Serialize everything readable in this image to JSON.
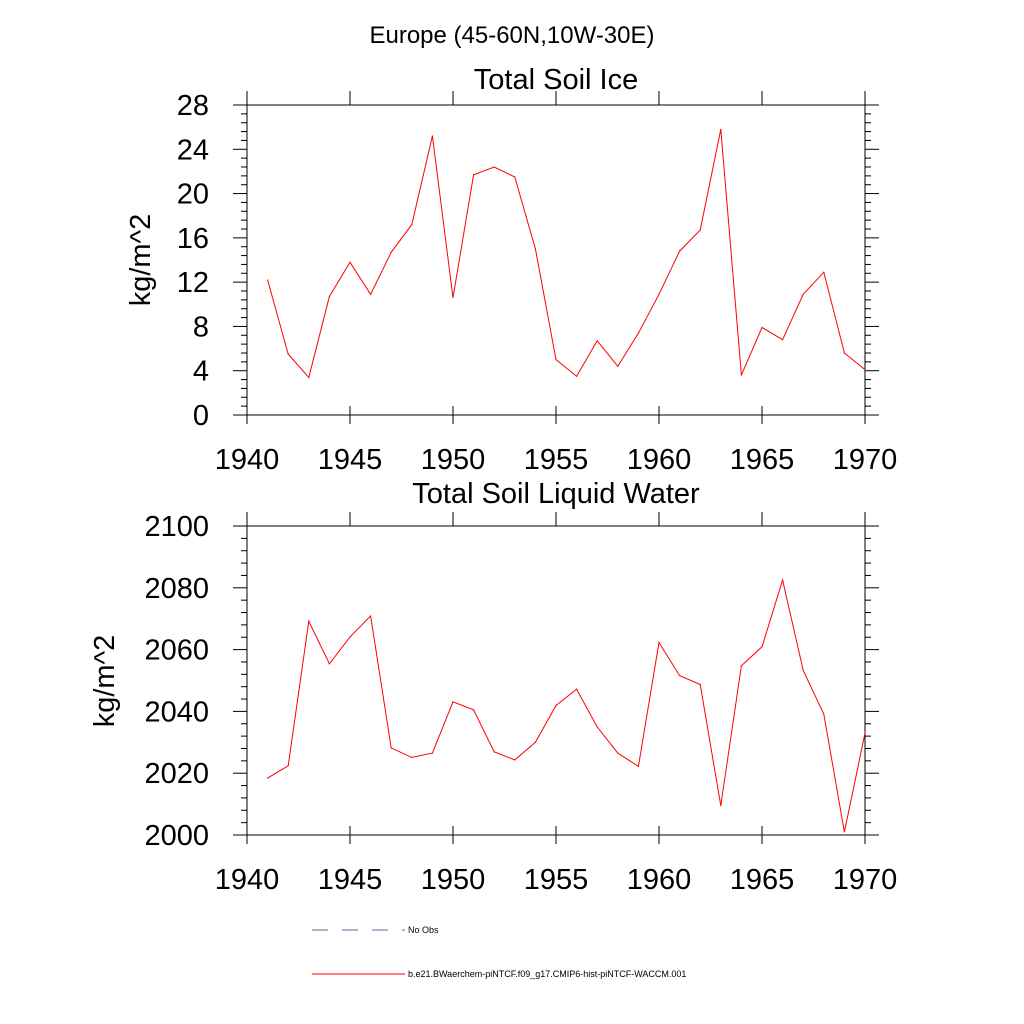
{
  "figure_title": "Europe (45-60N,10W-30E)",
  "colors": {
    "series": "#ff0000",
    "obs": "#5a6aa8",
    "axis": "#000000"
  },
  "chart_data": [
    {
      "type": "line",
      "title": "Total Soil Ice",
      "xlabel": "",
      "ylabel": "kg/m^2",
      "xlim": [
        1940,
        1970
      ],
      "ylim": [
        0,
        28
      ],
      "xticks": [
        1940,
        1945,
        1950,
        1955,
        1960,
        1965,
        1970
      ],
      "yticks": [
        0,
        4,
        8,
        12,
        16,
        20,
        24,
        28
      ],
      "x": [
        1941,
        1942,
        1943,
        1944,
        1945,
        1946,
        1947,
        1948,
        1949,
        1950,
        1951,
        1952,
        1953,
        1954,
        1955,
        1956,
        1957,
        1958,
        1959,
        1960,
        1961,
        1962,
        1963,
        1964,
        1965,
        1966,
        1967,
        1968,
        1969,
        1970
      ],
      "series": [
        {
          "name": "b.e21.BWaerchem-piNTCF.f09_g17.CMIP6-hist-piNTCF-WACCM.001",
          "values": [
            12.2,
            5.5,
            3.4,
            10.7,
            13.8,
            10.9,
            14.7,
            17.2,
            25.2,
            10.6,
            21.7,
            22.4,
            21.5,
            15.0,
            5.0,
            3.5,
            6.7,
            4.4,
            7.4,
            10.9,
            14.8,
            16.7,
            25.8,
            3.6,
            7.9,
            6.8,
            10.9,
            12.9,
            5.6,
            4.1
          ]
        }
      ]
    },
    {
      "type": "line",
      "title": "Total Soil Liquid Water",
      "xlabel": "",
      "ylabel": "kg/m^2",
      "xlim": [
        1940,
        1970
      ],
      "ylim": [
        2000,
        2100
      ],
      "xticks": [
        1940,
        1945,
        1950,
        1955,
        1960,
        1965,
        1970
      ],
      "yticks": [
        2000,
        2020,
        2040,
        2060,
        2080,
        2100
      ],
      "x": [
        1941,
        1942,
        1943,
        1944,
        1945,
        1946,
        1947,
        1948,
        1949,
        1950,
        1951,
        1952,
        1953,
        1954,
        1955,
        1956,
        1957,
        1958,
        1959,
        1960,
        1961,
        1962,
        1963,
        1964,
        1965,
        1966,
        1967,
        1968,
        1969,
        1970
      ],
      "series": [
        {
          "name": "b.e21.BWaerchem-piNTCF.f09_g17.CMIP6-hist-piNTCF-WACCM.001",
          "values": [
            2018.4,
            2022.4,
            2069.2,
            2055.4,
            2064.1,
            2070.9,
            2028.2,
            2025.1,
            2026.5,
            2043.1,
            2040.5,
            2026.9,
            2024.3,
            2030.0,
            2041.9,
            2047.2,
            2035.0,
            2026.5,
            2022.2,
            2062.3,
            2051.6,
            2048.7,
            2009.5,
            2054.8,
            2060.9,
            2082.5,
            2053.3,
            2039.1,
            2001.0,
            2033.0
          ]
        }
      ]
    }
  ],
  "legend": [
    {
      "label": "No Obs",
      "style": "dashed"
    },
    {
      "label": "b.e21.BWaerchem-piNTCF.f09_g17.CMIP6-hist-piNTCF-WACCM.001",
      "style": "solid"
    }
  ]
}
